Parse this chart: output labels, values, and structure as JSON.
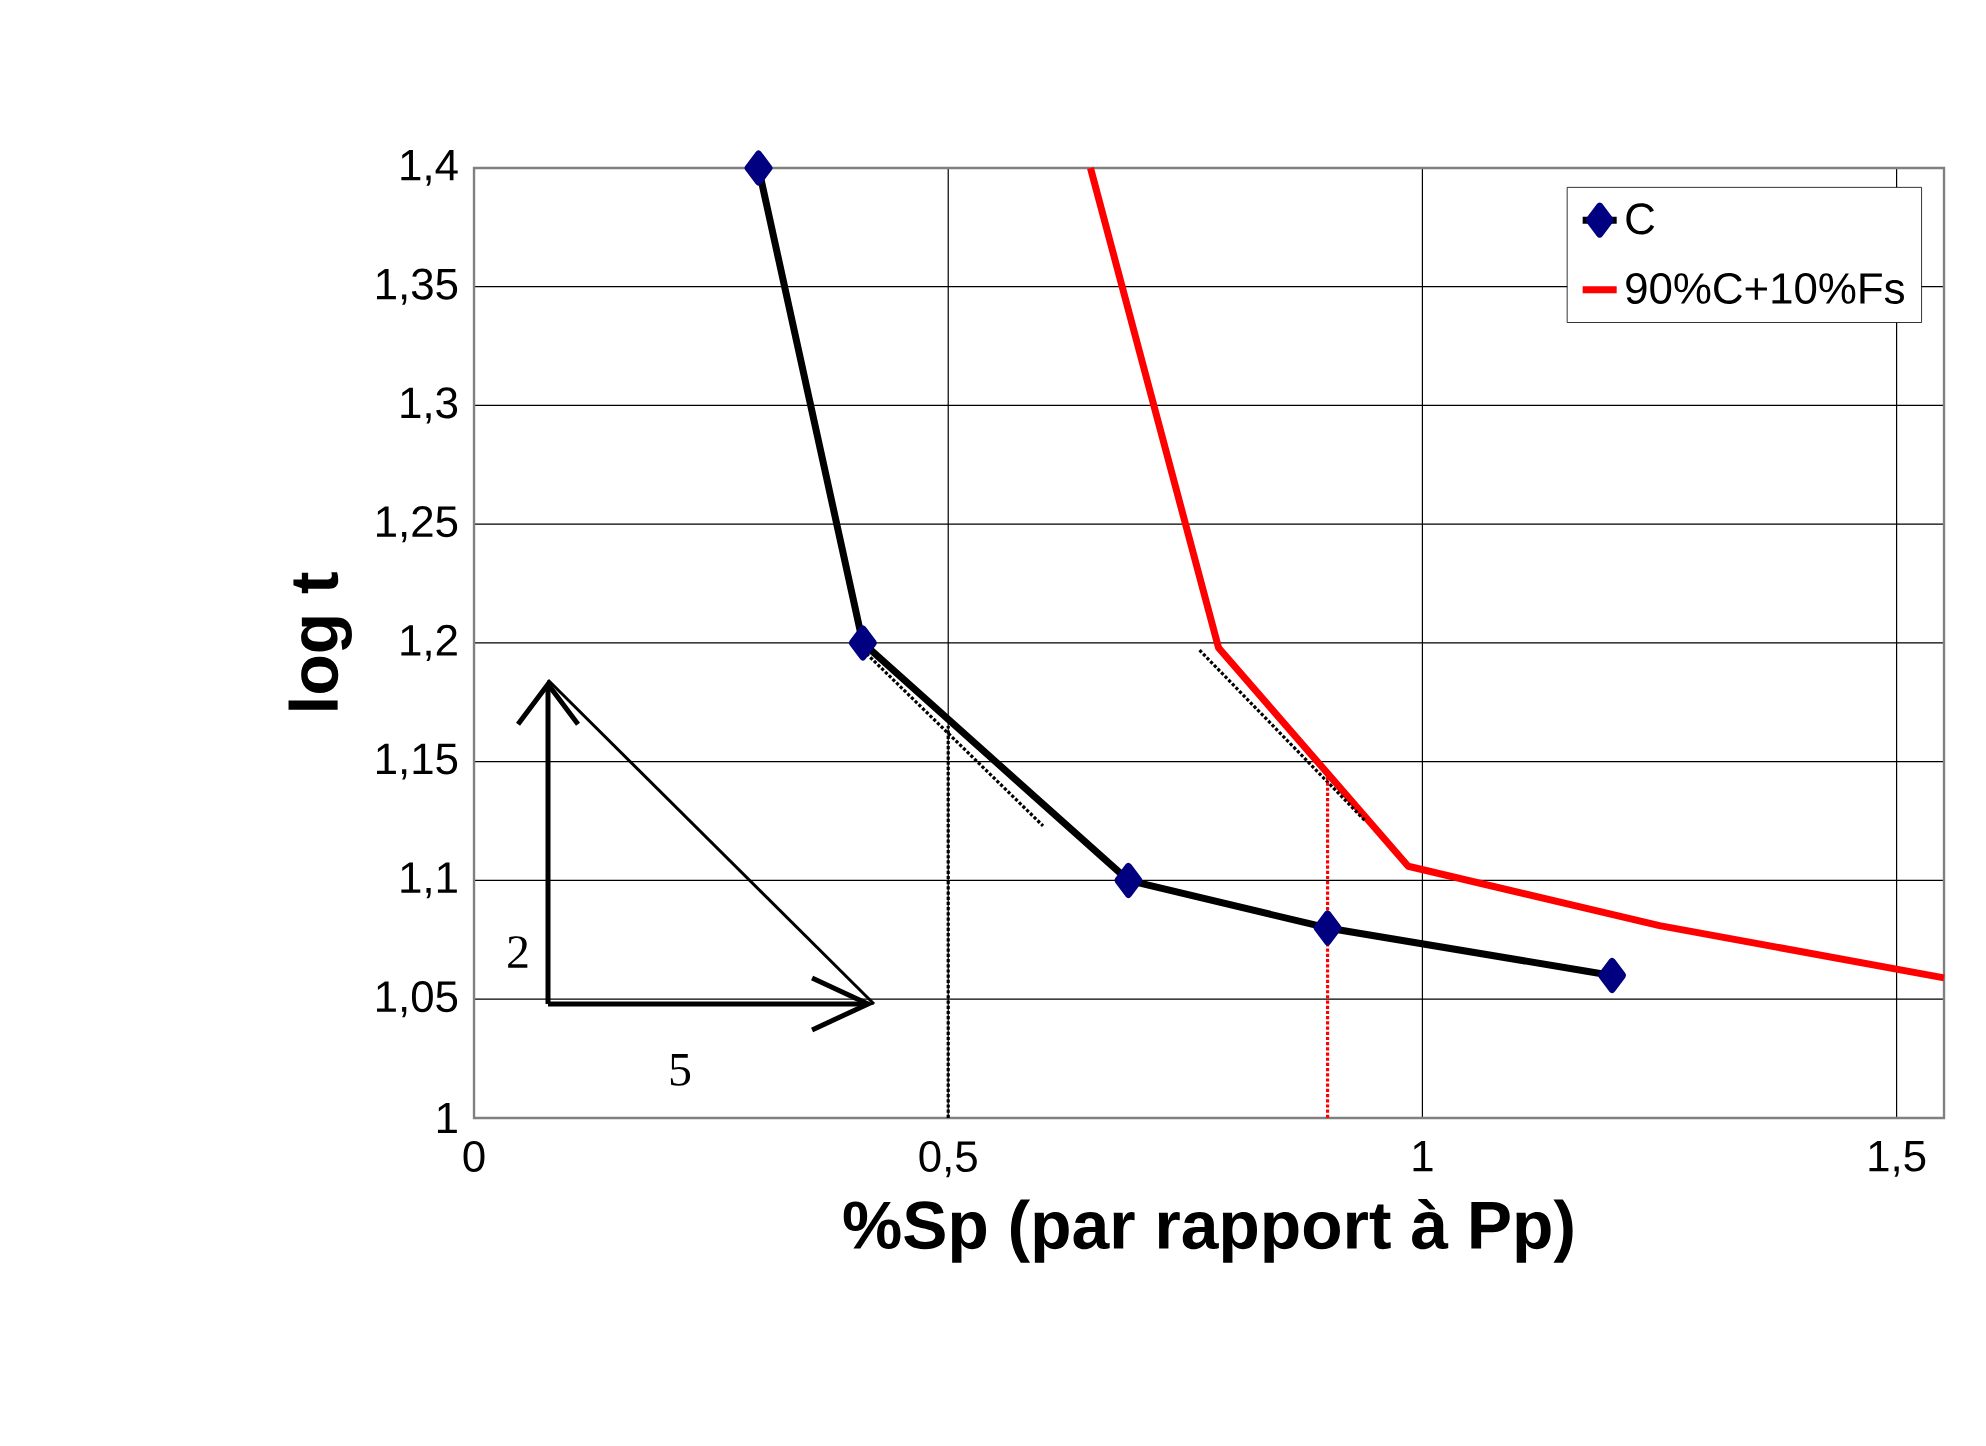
{
  "chart_data": {
    "type": "line",
    "xlabel": "%Sp (par rapport à Pp)",
    "ylabel": "log t",
    "xlim": [
      0,
      1.55
    ],
    "ylim": [
      1,
      1.4
    ],
    "xticks": [
      0,
      {
        "value": 0.5,
        "label": "0,5"
      },
      1,
      {
        "value": 1.5,
        "label": "1,5"
      }
    ],
    "yticks": [
      1,
      {
        "value": 1.05,
        "label": "1,05"
      },
      {
        "value": 1.1,
        "label": "1,1"
      },
      {
        "value": 1.15,
        "label": "1,15"
      },
      {
        "value": 1.2,
        "label": "1,2"
      },
      {
        "value": 1.25,
        "label": "1,25"
      },
      {
        "value": 1.3,
        "label": "1,3"
      },
      {
        "value": 1.35,
        "label": "1,35"
      },
      {
        "value": 1.4,
        "label": "1,4"
      }
    ],
    "grid": true,
    "legend": "top right",
    "annotations": [
      "2",
      "5"
    ],
    "series": [
      {
        "name": "C",
        "color": "#000000",
        "marker": "diamond",
        "x": [
          0.3,
          0.41,
          0.69,
          0.9,
          1.2
        ],
        "values": [
          1.4,
          1.2,
          1.1,
          1.08,
          1.06
        ]
      },
      {
        "name": "90%C+10%Fs",
        "color": "#ff0000",
        "marker": "none",
        "x": [
          0.65,
          0.785,
          0.985,
          1.25,
          1.55
        ],
        "values": [
          1.4,
          1.198,
          1.106,
          1.081,
          1.059
        ]
      },
      {
        "color": "#000000",
        "marker": "none",
        "line_style": "dotted",
        "x": [
          0.41,
          0.6
        ],
        "values": [
          1.197,
          1.123
        ]
      },
      {
        "color": "#000000",
        "marker": "none",
        "line_style": "dotted",
        "x": [
          0.5,
          0.5
        ],
        "values": [
          1,
          1.165
        ]
      },
      {
        "color": "#000000",
        "marker": "none",
        "line_style": "dotted",
        "x": [
          0.765,
          0.94
        ],
        "values": [
          1.197,
          1.125
        ]
      },
      {
        "color": "#ff0000",
        "marker": "none",
        "line_style": "dotted",
        "x": [
          0.9,
          0.9
        ],
        "values": [
          1,
          1.145
        ]
      }
    ]
  }
}
